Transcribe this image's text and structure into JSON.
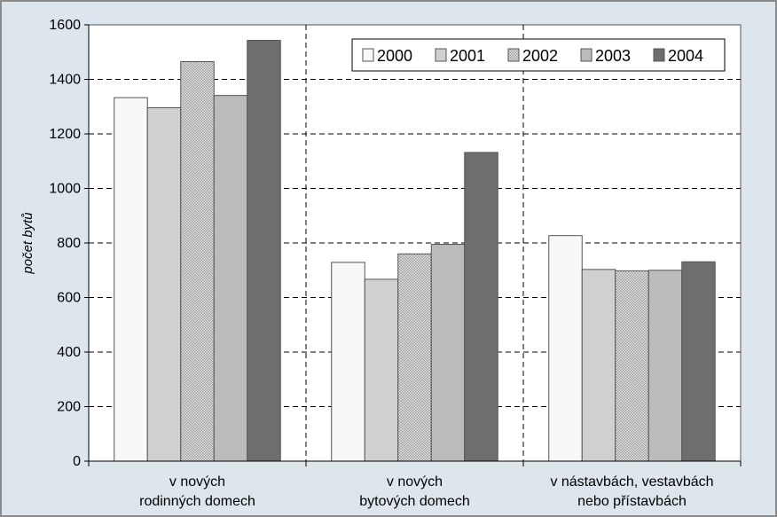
{
  "chart_data": {
    "type": "bar",
    "categories": [
      [
        "v nových",
        "rodinných domech"
      ],
      [
        "v nových",
        "bytových domech"
      ],
      [
        "v nástavbách, vestavbách",
        "nebo přístavbách"
      ]
    ],
    "series": [
      {
        "name": "2000",
        "values": [
          1333,
          729,
          827
        ],
        "color": "#f8f8f8",
        "pattern": "solid"
      },
      {
        "name": "2001",
        "values": [
          1296,
          667,
          703
        ],
        "color": "#d0d0d0",
        "pattern": "solid"
      },
      {
        "name": "2002",
        "values": [
          1465,
          760,
          698
        ],
        "color": "#c4c4c4",
        "pattern": "grid"
      },
      {
        "name": "2003",
        "values": [
          1341,
          795,
          700
        ],
        "color": "#bbbbbb",
        "pattern": "solid"
      },
      {
        "name": "2004",
        "values": [
          1543,
          1132,
          731
        ],
        "color": "#6e6e6e",
        "pattern": "solid"
      }
    ],
    "title": "",
    "xlabel": "",
    "ylabel": "počet bytů",
    "ylim": [
      0,
      1600
    ],
    "yticks": [
      0,
      200,
      400,
      600,
      800,
      1000,
      1200,
      1400,
      1600
    ],
    "grid": true,
    "legend": "top-right"
  }
}
